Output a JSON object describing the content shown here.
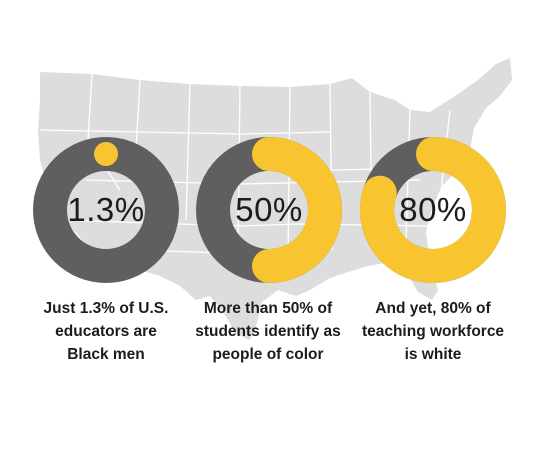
{
  "colors": {
    "track": "#5f5f5f",
    "highlight": "#f8c531",
    "map": "#dddddd",
    "map_lines": "#ffffff"
  },
  "chart_data": [
    {
      "type": "pie",
      "style": "donut",
      "value_percent": 1.3,
      "center_label": "1.3%",
      "caption_lines": [
        "Just 1.3% of U.S.",
        "educators are",
        "Black men"
      ]
    },
    {
      "type": "pie",
      "style": "donut",
      "value_percent": 50,
      "center_label": "50%",
      "caption_lines": [
        "More than 50% of",
        "students identify as",
        "people of color"
      ]
    },
    {
      "type": "pie",
      "style": "donut",
      "value_percent": 80,
      "center_label": "80%",
      "caption_lines": [
        "And yet, 80% of",
        "teaching workforce",
        "is white"
      ]
    }
  ]
}
